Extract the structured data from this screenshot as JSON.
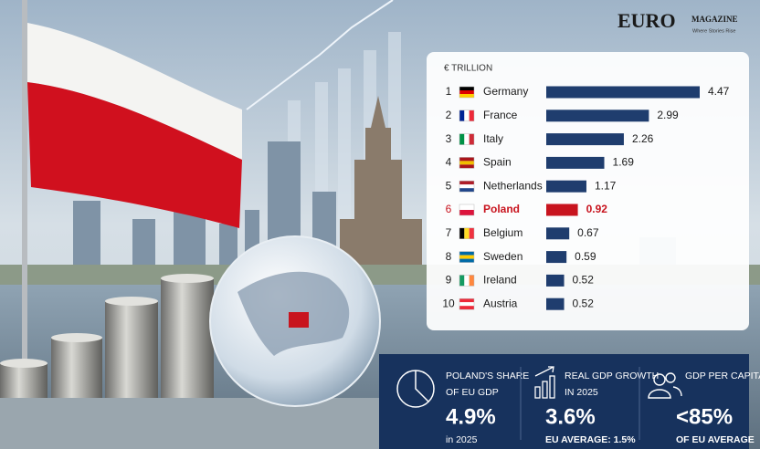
{
  "logo": {
    "name": "EURO",
    "tag": "MAGAZINE",
    "slogan": "Where Stories Rise"
  },
  "chart_data": {
    "type": "bar",
    "orientation": "horizontal",
    "title": "€ TRILLION",
    "ranks": [
      1,
      2,
      3,
      4,
      5,
      6,
      7,
      8,
      9,
      10
    ],
    "categories": [
      "Germany",
      "France",
      "Italy",
      "Spain",
      "Netherlands",
      "Poland",
      "Belgium",
      "Sweden",
      "Ireland",
      "Austria"
    ],
    "values": [
      4.47,
      2.99,
      2.26,
      1.69,
      1.17,
      0.92,
      0.67,
      0.59,
      0.52,
      0.52
    ],
    "colors": [
      "#1f3d6e",
      "#1f3d6e",
      "#1f3d6e",
      "#1f3d6e",
      "#1f3d6e",
      "#c8141e",
      "#1f3d6e",
      "#1f3d6e",
      "#1f3d6e",
      "#1f3d6e"
    ]
  },
  "stats": [
    {
      "label": [
        "POLAND'S SHARE",
        "OF EU GDP"
      ],
      "value": "4.9%",
      "sub": "in 2025"
    },
    {
      "label": [
        "REAL GDP GROWTH",
        "IN 2025"
      ],
      "value": "3.6%",
      "sub": "EU AVERAGE: 1.5%"
    },
    {
      "label": [
        "GDP PER CAPITA"
      ],
      "value": "<85%",
      "sub": "OF EU AVERAGE"
    }
  ]
}
